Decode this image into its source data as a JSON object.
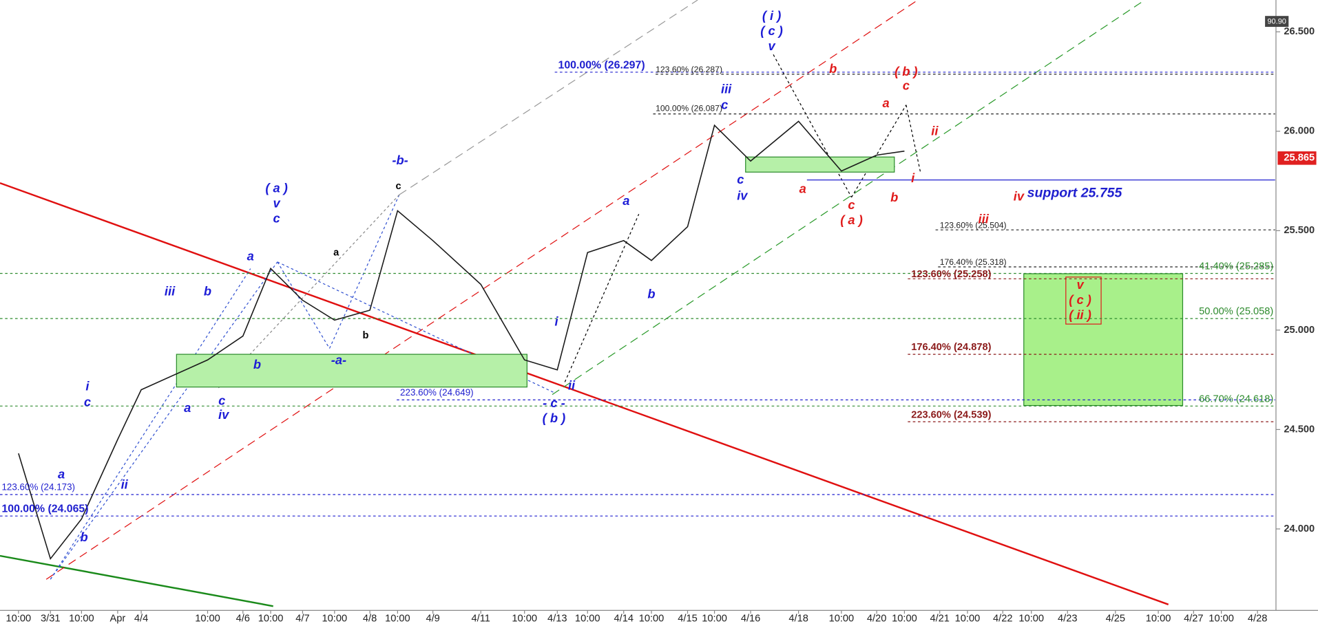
{
  "chart_data": {
    "type": "line",
    "categories": [
      "10:00",
      "3/31",
      "10:00",
      "Apr",
      "4/4",
      "10:00",
      "4/6",
      "10:00",
      "4/7",
      "10:00",
      "4/8",
      "10:00",
      "4/9",
      "4/11",
      "10:00",
      "4/13",
      "10:00",
      "4/14",
      "10:00",
      "4/15",
      "10:00",
      "4/16",
      "4/18",
      "10:00",
      "4/20",
      "10:00",
      "4/21",
      "10:00",
      "4/22",
      "10:00",
      "4/23",
      "4/25",
      "10:00",
      "4/27",
      "10:00",
      "4/28"
    ],
    "series": [
      {
        "color": "#1a1a1a",
        "values": [
          24.38,
          23.85,
          24.05,
          24.45,
          24.7,
          24.85,
          24.97,
          25.31,
          25.15,
          25.05,
          25.1,
          25.6,
          25.45,
          25.23,
          24.85,
          24.8,
          25.39,
          25.45,
          25.35,
          25.52,
          26.03,
          25.85,
          26.05,
          25.8,
          25.88,
          25.9,
          null,
          null,
          null,
          null,
          null,
          null,
          null,
          null,
          null,
          null
        ]
      }
    ],
    "ylim": [
      23.62,
      26.66
    ],
    "yticks": [
      {
        "value": 24,
        "label": "24.000"
      },
      {
        "value": 24.5,
        "label": "24.500"
      },
      {
        "value": 25,
        "label": "25.000"
      },
      {
        "value": 25.5,
        "label": "25.500"
      },
      {
        "value": 26,
        "label": "26.000"
      },
      {
        "value": 26.5,
        "label": "26.500"
      }
    ],
    "last_price": 25.865,
    "last_price_color": "#e02020",
    "indicator": "90.90",
    "levels": [
      {
        "value": 26.297,
        "label": "100.00% (26.297)",
        "color": "#1f1fcf"
      },
      {
        "value": 26.287,
        "label": "123.60% (26.287)",
        "color": "#222222"
      },
      {
        "value": 26.087,
        "label": "100.00% (26.087)",
        "color": "#222222"
      },
      {
        "value": 25.504,
        "label": "123.60% (25.504)",
        "color": "#222222"
      },
      {
        "value": 25.318,
        "label": "176.40% (25.318)",
        "color": "#222222"
      },
      {
        "value": 25.285,
        "label": "41.40% (25.285)",
        "color": "#2e8b2e"
      },
      {
        "value": 25.258,
        "label": "123.60% (25.258)",
        "color": "#8b1a1a"
      },
      {
        "value": 25.058,
        "label": "50.00% (25.058)",
        "color": "#2e8b2e"
      },
      {
        "value": 24.878,
        "label": "176.40% (24.878)",
        "color": "#8b1a1a"
      },
      {
        "value": 24.649,
        "label": "223.60% (24.649)",
        "color": "#1f1fcf"
      },
      {
        "value": 24.618,
        "label": "66.70% (24.618)",
        "color": "#2e8b2e"
      },
      {
        "value": 24.539,
        "label": "223.60% (24.539)",
        "color": "#8b1a1a"
      },
      {
        "value": 24.173,
        "label": "123.60% (24.173)",
        "color": "#1f1fcf"
      },
      {
        "value": 24.065,
        "label": "100.00% (24.065)",
        "color": "#1f1fcf"
      },
      {
        "value": 25.755,
        "label": "support 25.755",
        "color": "#1f1fcf"
      }
    ],
    "annotations": [
      {
        "text": "( i )",
        "color": "#1c1cd6"
      },
      {
        "text": "( c )",
        "color": "#1c1cd6"
      },
      {
        "text": "v",
        "color": "#1c1cd6"
      },
      {
        "text": "iii",
        "color": "#1c1cd6"
      },
      {
        "text": "c",
        "color": "#1c1cd6"
      },
      {
        "text": "-b-",
        "color": "#1c1cd6"
      },
      {
        "text": "c",
        "color": "#000000"
      },
      {
        "text": "( a )",
        "color": "#1c1cd6"
      },
      {
        "text": "v",
        "color": "#1c1cd6"
      },
      {
        "text": "c",
        "color": "#1c1cd6"
      },
      {
        "text": "a",
        "color": "#1c1cd6"
      },
      {
        "text": "a",
        "color": "#000000"
      },
      {
        "text": "b",
        "color": "#000000"
      },
      {
        "text": "-a-",
        "color": "#1c1cd6"
      },
      {
        "text": "b",
        "color": "#1c1cd6"
      },
      {
        "text": "iii",
        "color": "#1c1cd6"
      },
      {
        "text": "b",
        "color": "#1c1cd6"
      },
      {
        "text": "a",
        "color": "#1c1cd6"
      },
      {
        "text": "c",
        "color": "#1c1cd6"
      },
      {
        "text": "iv",
        "color": "#1c1cd6"
      },
      {
        "text": "i",
        "color": "#1c1cd6"
      },
      {
        "text": "c",
        "color": "#1c1cd6"
      },
      {
        "text": "a",
        "color": "#1c1cd6"
      },
      {
        "text": "ii",
        "color": "#1c1cd6"
      },
      {
        "text": "b",
        "color": "#1c1cd6"
      },
      {
        "text": "i",
        "color": "#1c1cd6"
      },
      {
        "text": "ii",
        "color": "#1c1cd6"
      },
      {
        "text": "- c -",
        "color": "#1c1cd6"
      },
      {
        "text": "( b )",
        "color": "#1c1cd6"
      },
      {
        "text": "a",
        "color": "#1c1cd6"
      },
      {
        "text": "b",
        "color": "#1c1cd6"
      },
      {
        "text": "c",
        "color": "#1c1cd6"
      },
      {
        "text": "iv",
        "color": "#1c1cd6"
      },
      {
        "text": "b",
        "color": "#e01b1b"
      },
      {
        "text": "( b )",
        "color": "#e01b1b"
      },
      {
        "text": "c",
        "color": "#e01b1b"
      },
      {
        "text": "a",
        "color": "#e01b1b"
      },
      {
        "text": "ii",
        "color": "#e01b1b"
      },
      {
        "text": "a",
        "color": "#e01b1b"
      },
      {
        "text": "c",
        "color": "#e01b1b"
      },
      {
        "text": "( a )",
        "color": "#e01b1b"
      },
      {
        "text": "b",
        "color": "#e01b1b"
      },
      {
        "text": "i",
        "color": "#e01b1b"
      },
      {
        "text": "iv",
        "color": "#e01b1b"
      },
      {
        "text": "iii",
        "color": "#e01b1b"
      },
      {
        "text": "v",
        "color": "#e01b1b"
      },
      {
        "text": "( c )",
        "color": "#e01b1b"
      },
      {
        "text": "( ii )",
        "color": "#e01b1b"
      }
    ]
  }
}
